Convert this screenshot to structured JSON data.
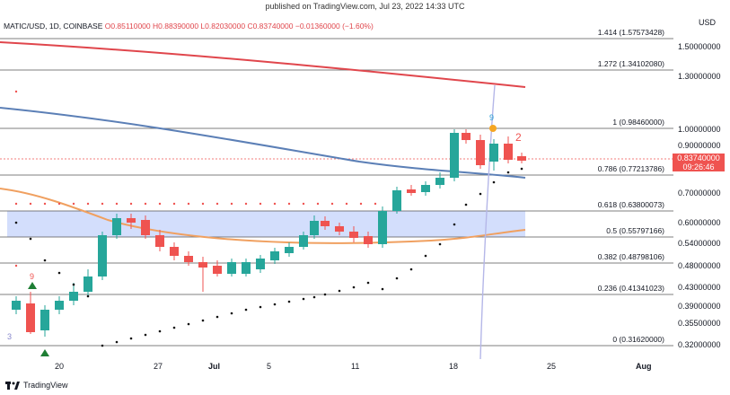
{
  "header": {
    "published": "published on TradingView.com, Jul 23, 2022 14:33 UTC"
  },
  "symbol": {
    "pair": "MATIC/USD, 1D, COINBASE",
    "open": "O0.85110000",
    "high": "H0.88390000",
    "low": "L0.82030000",
    "close": "C0.83740000",
    "change": "−0.01360000 (−1.60%)"
  },
  "axis": {
    "currency": "USD",
    "price_labels": [
      "1.50000000",
      "1.30000000",
      "1.00000000",
      "0.90000000",
      "0.70000000",
      "0.60000000",
      "0.54000000",
      "0.48000000",
      "0.43000000",
      "0.39000000",
      "0.35500000",
      "0.32000000"
    ],
    "date_labels": [
      "20",
      "27",
      "Jul",
      "5",
      "11",
      "18",
      "25",
      "Aug"
    ]
  },
  "fib_levels": [
    {
      "label": "1.414 (1.57573428)"
    },
    {
      "label": "1.272 (1.34102080)"
    },
    {
      "label": "1 (0.98460000)"
    },
    {
      "label": "0.786 (0.77213786)"
    },
    {
      "label": "0.618 (0.63800073)"
    },
    {
      "label": "0.5 (0.55797166)"
    },
    {
      "label": "0.382 (0.48798106)"
    },
    {
      "label": "0.236 (0.41341023)"
    },
    {
      "label": "0 (0.31620000)"
    }
  ],
  "price_tag": {
    "price": "0.83740000",
    "countdown": "09:26:46"
  },
  "annotations": {
    "td_9_left": "9",
    "td_3_left": "3",
    "td_9_right": "9",
    "td_2_right": "2"
  },
  "footer": {
    "brand": "TradingView"
  },
  "colors": {
    "up": "#26a69a",
    "down": "#ef5350",
    "ma_red": "#e0464c",
    "ma_blue": "#5b7fb6",
    "ma_orange": "#f0a060",
    "zone": "#c8d6fb"
  }
}
